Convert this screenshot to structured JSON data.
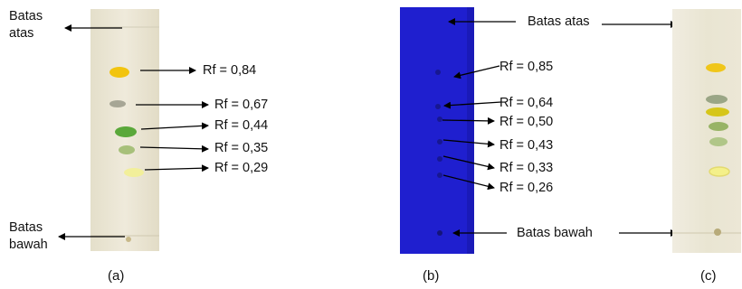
{
  "panels": {
    "a": {
      "caption": "(a)",
      "top_label_line1": "Batas",
      "top_label_line2": "atas",
      "bottom_label_line1": "Batas",
      "bottom_label_line2": "bawah",
      "rf_labels": [
        "Rf = 0,84",
        "Rf = 0,67",
        "Rf = 0,44",
        "Rf = 0,35",
        "Rf = 0,29"
      ],
      "spot_colors": [
        "#f2c40f",
        "#9a9a8a",
        "#5aa83a",
        "#a7c07a",
        "#f2ef9a"
      ]
    },
    "b": {
      "caption": "(b)",
      "top_label": "Batas atas",
      "bottom_label": "Batas bawah",
      "rf_labels": [
        "Rf = 0,85",
        "Rf = 0,64",
        "Rf = 0,50",
        "Rf = 0,43",
        "Rf = 0,33",
        "Rf = 0,26"
      ],
      "plate_color": "#1f1fcf"
    },
    "c": {
      "caption": "(c)",
      "spot_colors": [
        "#f0c61a",
        "#8c9a78",
        "#d6c61a",
        "#8fae5a",
        "#a6bf7a",
        "#f4f08a"
      ]
    }
  },
  "colors": {
    "plate_bg": "#ebe6d4",
    "arrow": "#000000"
  }
}
